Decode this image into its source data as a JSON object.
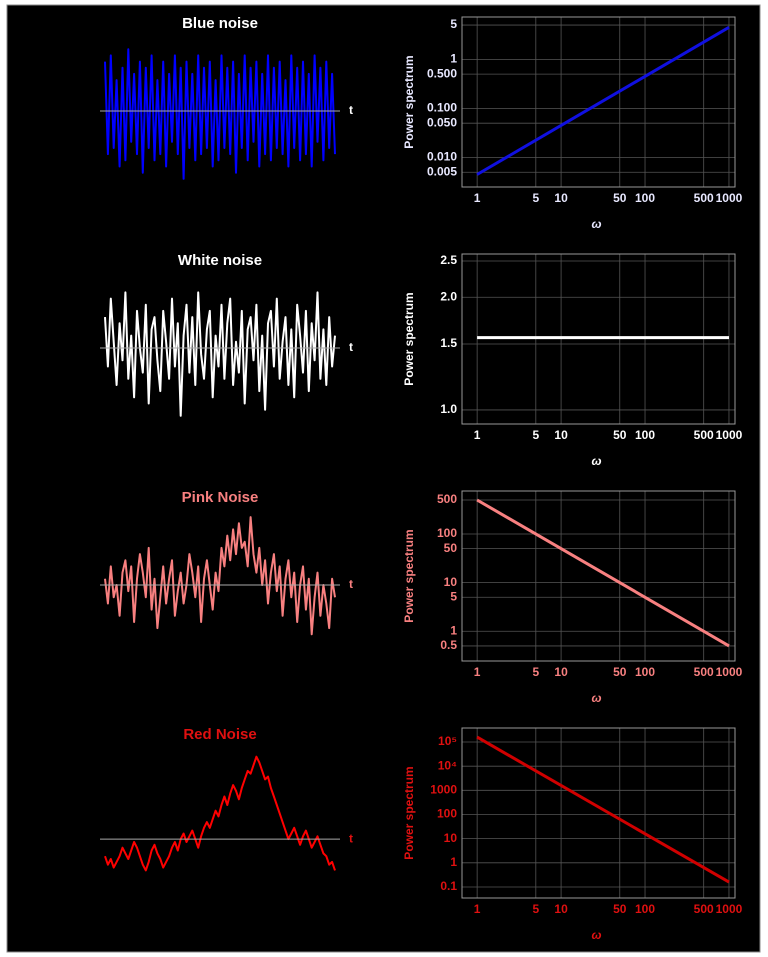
{
  "chart_data": [
    {
      "type": "line",
      "title": "Blue noise",
      "xlabel": "t",
      "color": "#0000ff",
      "label_color": "#ffffff",
      "ylim": [
        -1.2,
        1.15
      ],
      "values": [
        0.8,
        -0.7,
        0.9,
        -0.6,
        0.5,
        -0.9,
        0.7,
        -0.8,
        1.0,
        -0.5,
        0.6,
        -0.7,
        0.8,
        -1.0,
        0.7,
        -0.6,
        0.9,
        -0.8,
        0.5,
        -0.7,
        0.8,
        -0.9,
        0.6,
        -0.5,
        0.9,
        -0.7,
        0.7,
        -1.1,
        0.8,
        -0.6,
        0.6,
        -0.8,
        0.9,
        -0.7,
        0.7,
        -0.6,
        0.8,
        -0.9,
        0.5,
        -0.8,
        0.9,
        -0.6,
        0.7,
        -0.7,
        0.8,
        -1.0,
        0.6,
        -0.6,
        0.9,
        -0.8,
        0.7,
        -0.5,
        0.8,
        -0.9,
        0.6,
        -0.7,
        0.9,
        -0.8,
        0.7,
        -0.6,
        0.8,
        -0.7,
        0.5,
        -0.9,
        0.9,
        -0.6,
        0.7,
        -0.8,
        0.8,
        -0.7,
        0.6,
        -0.9,
        0.9,
        -0.5,
        0.7,
        -0.8,
        0.8,
        -0.6,
        0.6,
        -0.7
      ]
    },
    {
      "type": "line",
      "xlabel": "ω",
      "ylabel": "Power spectrum",
      "color": "#1010e0",
      "label_color": "#e8e8ff",
      "xlog": true,
      "ylog": true,
      "grid": true,
      "x": [
        1,
        1000
      ],
      "values": [
        0.0045,
        4.5
      ],
      "xlim": [
        0.66,
        1180
      ],
      "ylim": [
        0.0025,
        7.3
      ],
      "xticks": [
        1,
        5,
        10,
        50,
        100,
        500,
        1000
      ],
      "yticks": [
        0.005,
        {
          "value": 0.01,
          "label": "0.010"
        },
        {
          "value": 0.05,
          "label": "0.050"
        },
        {
          "value": 0.1,
          "label": "0.100"
        },
        {
          "value": 0.5,
          "label": "0.500"
        },
        1,
        5
      ]
    },
    {
      "type": "line",
      "title": "White noise",
      "xlabel": "t",
      "color": "#ffffff",
      "label_color": "#ffffff",
      "ylim": [
        -1.2,
        1.15
      ],
      "values": [
        0.5,
        -0.3,
        0.8,
        0.1,
        -0.6,
        0.4,
        -0.2,
        0.9,
        -0.5,
        0.2,
        -0.8,
        0.6,
        0.0,
        -0.4,
        0.7,
        -0.9,
        0.3,
        0.5,
        -0.2,
        -0.7,
        0.6,
        0.1,
        -0.5,
        0.8,
        -0.3,
        0.4,
        -1.1,
        0.2,
        0.7,
        -0.4,
        0.5,
        -0.6,
        0.9,
        -0.1,
        -0.5,
        0.3,
        0.6,
        -0.8,
        0.2,
        -0.3,
        0.7,
        -0.5,
        0.4,
        0.8,
        -0.6,
        0.1,
        -0.4,
        0.6,
        -0.9,
        0.3,
        0.5,
        -0.2,
        0.7,
        -0.7,
        0.2,
        -1.0,
        0.4,
        0.6,
        -0.3,
        0.8,
        -0.5,
        0.1,
        0.5,
        -0.6,
        0.3,
        -0.8,
        0.7,
        0.2,
        -0.4,
        0.6,
        -0.7,
        0.4,
        -0.2,
        0.9,
        -0.5,
        0.3,
        -0.6,
        0.5,
        -0.3,
        0.2
      ]
    },
    {
      "type": "line",
      "xlabel": "ω",
      "ylabel": "Power spectrum",
      "color": "#ffffff",
      "label_color": "#ffffff",
      "xlog": true,
      "ylog": true,
      "grid": true,
      "x": [
        1,
        1000
      ],
      "values": [
        1.56,
        1.56
      ],
      "xlim": [
        0.66,
        1180
      ],
      "ylim": [
        0.917,
        2.61
      ],
      "xticks": [
        1,
        5,
        10,
        50,
        100,
        500,
        1000
      ],
      "yticks": [
        {
          "value": 1,
          "label": "1.0"
        },
        1.5,
        {
          "value": 2,
          "label": "2.0"
        },
        2.5
      ]
    },
    {
      "type": "line",
      "title": "Pink Noise",
      "xlabel": "t",
      "color": "#f88080",
      "label_color": "#f88080",
      "ylim": [
        -1.2,
        1.15
      ],
      "values": [
        0.1,
        -0.3,
        0.3,
        -0.2,
        0.0,
        -0.5,
        0.2,
        0.4,
        -0.1,
        0.3,
        -0.6,
        0.1,
        0.5,
        0.2,
        -0.2,
        0.6,
        -0.4,
        0.1,
        -0.7,
        -0.2,
        0.3,
        -0.3,
        0.1,
        0.4,
        -0.5,
        -0.1,
        0.2,
        -0.3,
        0.0,
        0.5,
        0.2,
        -0.2,
        0.3,
        -0.6,
        0.1,
        0.4,
        0.0,
        -0.4,
        0.2,
        -0.1,
        0.6,
        0.3,
        0.8,
        0.4,
        0.9,
        0.5,
        1.0,
        0.6,
        0.7,
        0.3,
        1.1,
        0.5,
        0.2,
        0.6,
        0.0,
        0.4,
        -0.3,
        0.2,
        0.5,
        -0.1,
        0.3,
        -0.5,
        0.1,
        0.4,
        -0.2,
        0.2,
        -0.6,
        0.0,
        0.3,
        -0.4,
        0.1,
        -0.8,
        -0.2,
        0.2,
        -0.5,
        0.0,
        -0.3,
        -0.7,
        0.1,
        -0.2
      ]
    },
    {
      "type": "line",
      "xlabel": "ω",
      "ylabel": "Power spectrum",
      "color": "#f88080",
      "label_color": "#f88080",
      "xlog": true,
      "ylog": true,
      "grid": true,
      "x": [
        1,
        1000
      ],
      "values": [
        500,
        0.5
      ],
      "xlim": [
        0.66,
        1180
      ],
      "ylim": [
        0.245,
        765
      ],
      "xticks": [
        1,
        5,
        10,
        50,
        100,
        500,
        1000
      ],
      "yticks": [
        0.5,
        1,
        5,
        10,
        50,
        100,
        500
      ]
    },
    {
      "type": "line",
      "title": "Red Noise",
      "xlabel": "t",
      "color": "#ff0000",
      "label_color": "#e01010",
      "ylim": [
        -1,
        1.55
      ],
      "values": [
        -0.3,
        -0.45,
        -0.35,
        -0.5,
        -0.4,
        -0.3,
        -0.15,
        -0.25,
        -0.35,
        -0.2,
        -0.05,
        -0.15,
        -0.3,
        -0.45,
        -0.55,
        -0.4,
        -0.2,
        -0.1,
        -0.25,
        -0.35,
        -0.5,
        -0.4,
        -0.3,
        -0.15,
        -0.05,
        -0.2,
        0.0,
        0.1,
        -0.05,
        0.05,
        0.15,
        0.0,
        -0.15,
        0.05,
        0.2,
        0.3,
        0.2,
        0.35,
        0.5,
        0.4,
        0.6,
        0.75,
        0.6,
        0.8,
        0.95,
        0.85,
        0.7,
        0.9,
        1.05,
        1.2,
        1.15,
        1.3,
        1.45,
        1.35,
        1.2,
        1.05,
        1.1,
        0.9,
        0.75,
        0.6,
        0.45,
        0.3,
        0.15,
        0.0,
        0.1,
        0.2,
        0.05,
        -0.1,
        0.05,
        0.15,
        0.0,
        -0.15,
        -0.05,
        0.05,
        -0.1,
        -0.25,
        -0.3,
        -0.45,
        -0.4,
        -0.55
      ]
    },
    {
      "type": "line",
      "xlabel": "ω",
      "ylabel": "Power spectrum",
      "color": "#d00000",
      "label_color": "#e01010",
      "xlog": true,
      "ylog": true,
      "grid": true,
      "x": [
        1,
        1000
      ],
      "values": [
        160000,
        0.16
      ],
      "xlim": [
        0.66,
        1180
      ],
      "ylim": [
        0.035,
        380000
      ],
      "xticks": [
        1,
        5,
        10,
        50,
        100,
        500,
        1000
      ],
      "yticks": [
        0.1,
        1,
        10,
        100,
        1000,
        {
          "value": 10000,
          "label": "10⁴"
        },
        {
          "value": 100000,
          "label": "10⁵"
        }
      ]
    }
  ]
}
